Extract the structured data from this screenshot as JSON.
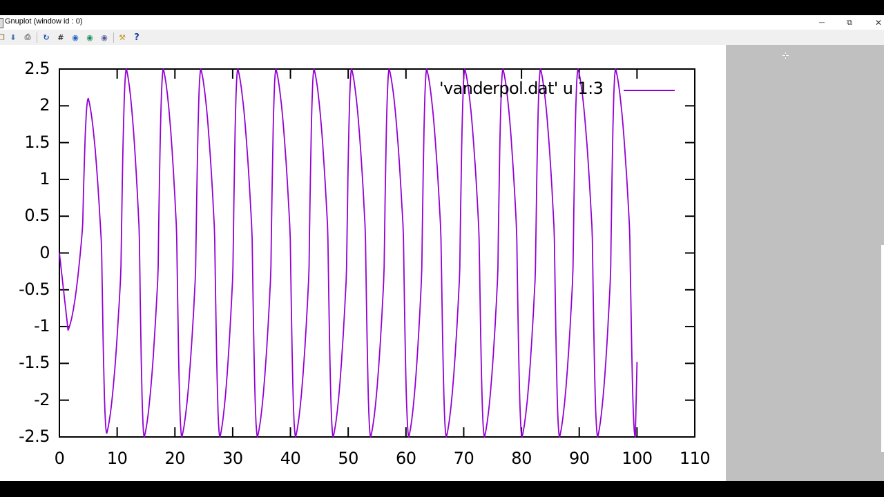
{
  "window": {
    "title": "Gnuplot (window id : 0)",
    "controls": {
      "minimize": "—",
      "restore": "⧉",
      "close": "✕"
    }
  },
  "toolbar": {
    "buttons": [
      {
        "name": "copy-to-clipboard",
        "icon": "clipboard-icon",
        "glyph": "❐"
      },
      {
        "name": "save",
        "icon": "save-icon",
        "glyph": "⬇"
      },
      {
        "name": "print",
        "icon": "print-icon",
        "glyph": "⎙"
      },
      {
        "name": "replot",
        "icon": "refresh-icon",
        "glyph": "↻"
      },
      {
        "name": "grid",
        "icon": "grid-icon",
        "glyph": "#"
      },
      {
        "name": "zoom-previous",
        "icon": "zoom-previous-icon",
        "glyph": "◉"
      },
      {
        "name": "zoom-next",
        "icon": "zoom-next-icon",
        "glyph": "◉"
      },
      {
        "name": "autoscale",
        "icon": "autoscale-icon",
        "glyph": "◉"
      },
      {
        "name": "options",
        "icon": "wrench-icon",
        "glyph": "⚒"
      },
      {
        "name": "help",
        "icon": "help-icon",
        "glyph": "?"
      }
    ]
  },
  "colors": {
    "series": "#9400d3",
    "axis": "#000000",
    "background": "#ffffff",
    "outside": "#c0c0c0",
    "toolbar": "#f0f0f0"
  },
  "chart_data": {
    "type": "line",
    "title": "",
    "xlabel": "",
    "ylabel": "",
    "xlim": [
      0,
      110
    ],
    "ylim": [
      -2.5,
      2.5
    ],
    "grid": false,
    "legend_position": "top-right inside",
    "x_ticks": [
      "0",
      "10",
      "20",
      "30",
      "40",
      "50",
      "60",
      "70",
      "80",
      "90",
      "100",
      "110"
    ],
    "y_ticks": [
      "2.5",
      "2",
      "1.5",
      "1",
      "0.5",
      "0",
      "-0.5",
      "-1",
      "-1.5",
      "-2",
      "-2.5"
    ],
    "series": [
      {
        "name": "'vanderpol.dat' u 1:3",
        "color": "#9400d3",
        "start": {
          "x": 0,
          "y": 0
        },
        "extrema": [
          {
            "x": 1.5,
            "y": -1.05
          },
          {
            "x": 5.0,
            "y": 2.1
          },
          {
            "x": 8.2,
            "y": -2.45
          },
          {
            "x": 11.6,
            "y": 2.5
          },
          {
            "x": 14.7,
            "y": -2.5
          },
          {
            "x": 18.0,
            "y": 2.5
          },
          {
            "x": 21.2,
            "y": -2.5
          },
          {
            "x": 24.5,
            "y": 2.5
          },
          {
            "x": 27.8,
            "y": -2.5
          },
          {
            "x": 30.9,
            "y": 2.5
          },
          {
            "x": 34.3,
            "y": -2.5
          },
          {
            "x": 37.5,
            "y": 2.5
          },
          {
            "x": 40.9,
            "y": -2.5
          },
          {
            "x": 44.1,
            "y": 2.5
          },
          {
            "x": 47.4,
            "y": -2.5
          },
          {
            "x": 50.6,
            "y": 2.5
          },
          {
            "x": 53.9,
            "y": -2.5
          },
          {
            "x": 57.1,
            "y": 2.5
          },
          {
            "x": 60.5,
            "y": -2.5
          },
          {
            "x": 63.6,
            "y": 2.5
          },
          {
            "x": 67.0,
            "y": -2.5
          },
          {
            "x": 70.2,
            "y": 2.5
          },
          {
            "x": 73.6,
            "y": -2.5
          },
          {
            "x": 76.8,
            "y": 2.5
          },
          {
            "x": 80.1,
            "y": -2.5
          },
          {
            "x": 83.3,
            "y": 2.5
          },
          {
            "x": 86.6,
            "y": -2.5
          },
          {
            "x": 89.8,
            "y": 2.5
          },
          {
            "x": 93.2,
            "y": -2.5
          },
          {
            "x": 96.3,
            "y": 2.5
          },
          {
            "x": 99.7,
            "y": -2.5
          }
        ],
        "end": {
          "x": 100,
          "y": -1.48
        }
      }
    ]
  },
  "legend": {
    "label": "'vanderpol.dat' u 1:3"
  }
}
